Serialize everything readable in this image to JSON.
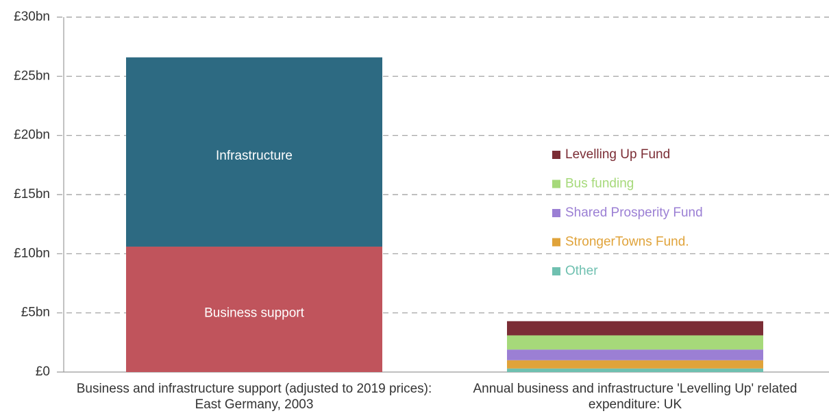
{
  "chart_data": {
    "type": "stacked_bar",
    "categories": [
      "Business and infrastructure support (adjusted to 2019 prices): East Germany, 2003",
      "Annual business and infrastructure 'Levelling Up' related expenditure: UK"
    ],
    "series": [
      {
        "name": "Business support",
        "color": "#c0545c",
        "values": [
          10.6,
          null
        ],
        "inside_label": true
      },
      {
        "name": "Infrastructure",
        "color": "#2d6a82",
        "values": [
          16.0,
          null
        ],
        "inside_label": true
      },
      {
        "name": "Other",
        "color": "#6fc0b0",
        "values": [
          null,
          0.3
        ]
      },
      {
        "name": "StrongerTowns Fund.",
        "color": "#e0a33a",
        "values": [
          null,
          0.7
        ]
      },
      {
        "name": "Shared Prosperity Fund",
        "color": "#9b7fd4",
        "values": [
          null,
          0.9
        ]
      },
      {
        "name": "Bus funding",
        "color": "#a6d97a",
        "values": [
          null,
          1.2
        ]
      },
      {
        "name": "Levelling Up Fund",
        "color": "#7b2d35",
        "values": [
          null,
          1.2
        ]
      }
    ],
    "ylim": [
      0,
      30
    ],
    "yticks": [
      {
        "value": 0,
        "label": "£0"
      },
      {
        "value": 5,
        "label": "£5bn"
      },
      {
        "value": 10,
        "label": "£10bn"
      },
      {
        "value": 15,
        "label": "£15bn"
      },
      {
        "value": 20,
        "label": "£20bn"
      },
      {
        "value": 25,
        "label": "£25bn"
      },
      {
        "value": 30,
        "label": "£30bn"
      }
    ],
    "grid": true,
    "legend": "right"
  }
}
